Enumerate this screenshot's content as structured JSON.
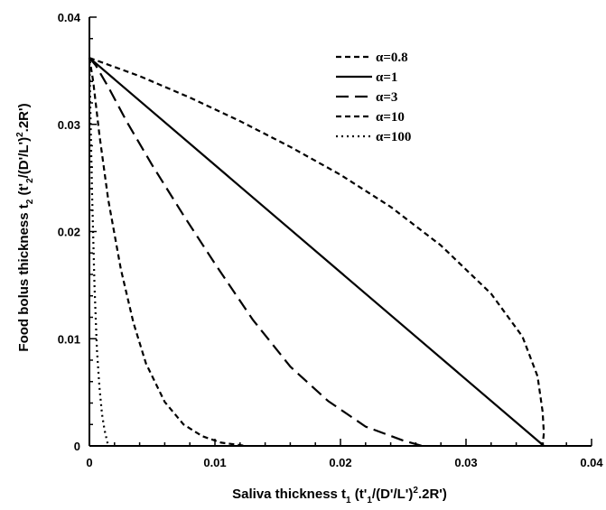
{
  "chart_data": {
    "type": "line",
    "title": "",
    "xlabel": {
      "main": "Saliva thickness t",
      "sub1": "1",
      "mid": " (t'",
      "sub2": "1",
      "tail": "/(D'/L')",
      "sup": "2",
      "end": ".2R')"
    },
    "ylabel": {
      "main": "Food bolus thickness t",
      "sub1": "2",
      "mid": " (t'",
      "sub2": "2",
      "tail": "/(D'/L')",
      "sup": "2",
      "end": ".2R')"
    },
    "xlim": [
      0,
      0.04
    ],
    "ylim": [
      0,
      0.04
    ],
    "xticks": [
      0,
      0.01,
      0.02,
      0.03,
      0.04
    ],
    "yticks": [
      0,
      0.01,
      0.02,
      0.03,
      0.04
    ],
    "xtick_labels": [
      "0",
      "0.01",
      "0.02",
      "0.03",
      "0.04"
    ],
    "ytick_labels": [
      "0",
      "0.01",
      "0.02",
      "0.03",
      "0.04"
    ],
    "legend_position": "top-right",
    "series": [
      {
        "name": "α=0.8",
        "style": "short-dash",
        "x": [
          0,
          0.004,
          0.008,
          0.012,
          0.016,
          0.02,
          0.024,
          0.028,
          0.032,
          0.0345,
          0.0357,
          0.0361,
          0.0362,
          0.0361
        ],
        "y": [
          0.0362,
          0.0345,
          0.0325,
          0.0303,
          0.0279,
          0.0253,
          0.0223,
          0.0187,
          0.0142,
          0.0102,
          0.0065,
          0.0032,
          0.0012,
          0
        ]
      },
      {
        "name": "α=1",
        "style": "solid",
        "x": [
          0,
          0.0362
        ],
        "y": [
          0.0362,
          0
        ]
      },
      {
        "name": "α=3",
        "style": "long-dash",
        "x": [
          0,
          0.0005,
          0.0015,
          0.003,
          0.005,
          0.0075,
          0.01,
          0.013,
          0.016,
          0.019,
          0.022,
          0.025,
          0.0265
        ],
        "y": [
          0.0362,
          0.0355,
          0.0335,
          0.0302,
          0.0262,
          0.0215,
          0.017,
          0.0118,
          0.0074,
          0.0042,
          0.0018,
          0.0005,
          0
        ]
      },
      {
        "name": "α=10",
        "style": "short-dash",
        "x": [
          0,
          0.0003,
          0.0008,
          0.0015,
          0.0025,
          0.0035,
          0.0045,
          0.006,
          0.0075,
          0.009,
          0.0105,
          0.0125
        ],
        "y": [
          0.0362,
          0.034,
          0.029,
          0.023,
          0.0165,
          0.0115,
          0.0077,
          0.0041,
          0.002,
          0.0009,
          0.0003,
          0
        ]
      },
      {
        "name": "α=100",
        "style": "dotted",
        "x": [
          0,
          0.0001,
          0.0002,
          0.0004,
          0.0006,
          0.0008,
          0.001,
          0.0012,
          0.0015
        ],
        "y": [
          0.0362,
          0.03,
          0.024,
          0.015,
          0.009,
          0.0055,
          0.003,
          0.0015,
          0
        ]
      }
    ]
  }
}
